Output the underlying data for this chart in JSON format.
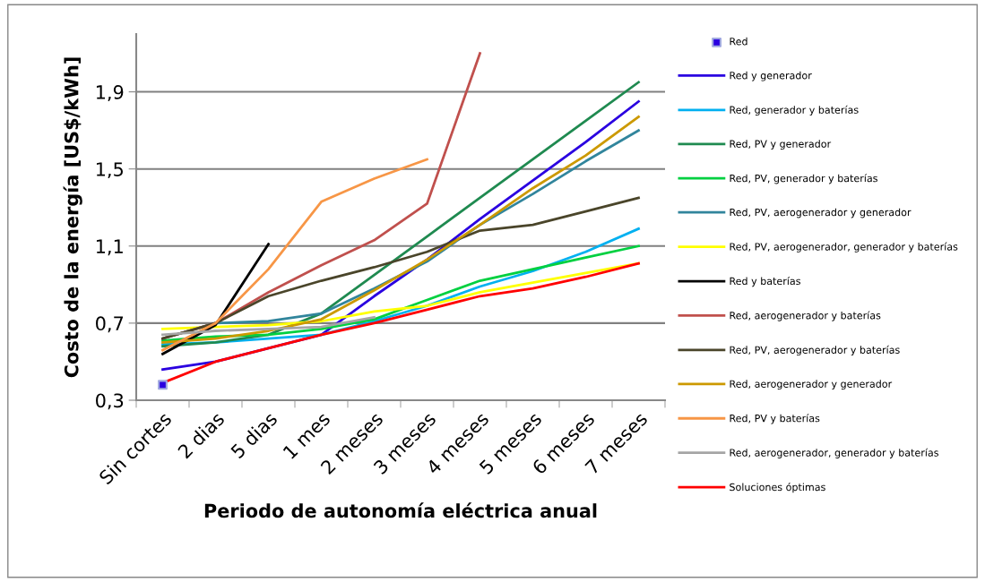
{
  "chart_data": {
    "type": "line",
    "xlabel": "Periodo de autonomía eléctrica anual",
    "ylabel": "Costo de la energía [US$/kWh]",
    "categories": [
      "Sin cortes",
      "2 dias",
      "5 dias",
      "1 mes",
      "2 meses",
      "3 meses",
      "4 meses",
      "5 meses",
      "6 meses",
      "7 meses"
    ],
    "ylim": [
      0.3,
      2.2
    ],
    "yticks": [
      {
        "value": 0.3,
        "label": "0,3"
      },
      {
        "value": 0.7,
        "label": "0,7"
      },
      {
        "value": 1.1,
        "label": "1,1"
      },
      {
        "value": 1.5,
        "label": "1,5"
      },
      {
        "value": 1.9,
        "label": "1,9"
      }
    ],
    "grid": "y",
    "legend": "right",
    "series": [
      {
        "name": "Red",
        "type": "scatter",
        "marker": "square",
        "color": "#2a00e0",
        "values": [
          0.38,
          null,
          null,
          null,
          null,
          null,
          null,
          null,
          null,
          null
        ]
      },
      {
        "name": "Red y generador",
        "color": "#2a00e0",
        "values": [
          0.46,
          0.5,
          0.57,
          0.64,
          0.84,
          1.03,
          1.24,
          1.44,
          1.64,
          1.85
        ]
      },
      {
        "name": "Red, generador y baterías",
        "color": "#00b0f0",
        "values": [
          0.59,
          0.6,
          0.62,
          0.64,
          0.71,
          0.79,
          0.89,
          0.97,
          1.07,
          1.19
        ]
      },
      {
        "name": "Red, PV y generador",
        "color": "#1f8a50",
        "values": [
          0.58,
          0.6,
          0.64,
          0.75,
          0.95,
          1.15,
          1.35,
          1.55,
          1.75,
          1.95
        ]
      },
      {
        "name": "Red, PV, generador y baterías",
        "color": "#00d040",
        "values": [
          0.61,
          0.63,
          0.64,
          0.67,
          0.72,
          0.82,
          0.92,
          0.98,
          1.04,
          1.1
        ]
      },
      {
        "name": "Red, PV, aerogenerador y generador",
        "color": "#31859c",
        "values": [
          0.62,
          0.7,
          0.71,
          0.75,
          0.88,
          1.02,
          1.21,
          1.37,
          1.54,
          1.7
        ]
      },
      {
        "name": "Red, PV, aerogenerador, generador y baterías",
        "color": "#ffff00",
        "values": [
          0.67,
          0.68,
          0.69,
          0.71,
          0.76,
          0.79,
          0.86,
          0.91,
          0.96,
          1.01
        ]
      },
      {
        "name": "Red y baterías",
        "color": "#000000",
        "values": [
          0.54,
          0.69,
          1.11,
          null,
          null,
          null,
          null,
          null,
          null,
          null
        ]
      },
      {
        "name": "Red, aerogenerador y baterías",
        "color": "#c0504d",
        "values": [
          0.62,
          0.7,
          0.86,
          1.0,
          1.13,
          1.32,
          2.1,
          null,
          null,
          null
        ]
      },
      {
        "name": "Red, PV, aerogenerador y baterías",
        "color": "#4a452a",
        "values": [
          0.62,
          0.7,
          0.84,
          0.92,
          0.99,
          1.07,
          1.18,
          1.21,
          1.28,
          1.35
        ]
      },
      {
        "name": "Red, aerogenerador y generador",
        "color": "#cc9900",
        "values": [
          0.6,
          0.62,
          0.66,
          0.72,
          0.87,
          1.03,
          1.21,
          1.4,
          1.57,
          1.77
        ]
      },
      {
        "name": "Red, PV y baterías",
        "color": "#f79646",
        "values": [
          0.56,
          0.7,
          0.98,
          1.33,
          1.45,
          1.55,
          null,
          null,
          null,
          null
        ]
      },
      {
        "name": "Red, aerogenerador, generador y baterías",
        "color": "#a5a5a5",
        "values": [
          0.64,
          0.66,
          0.67,
          0.68,
          0.73,
          null,
          null,
          null,
          null,
          null
        ]
      },
      {
        "name": "Soluciones óptimas",
        "color": "#ff0000",
        "values": [
          0.39,
          0.5,
          0.57,
          0.64,
          0.7,
          0.77,
          0.84,
          0.88,
          0.94,
          1.01
        ]
      }
    ]
  }
}
